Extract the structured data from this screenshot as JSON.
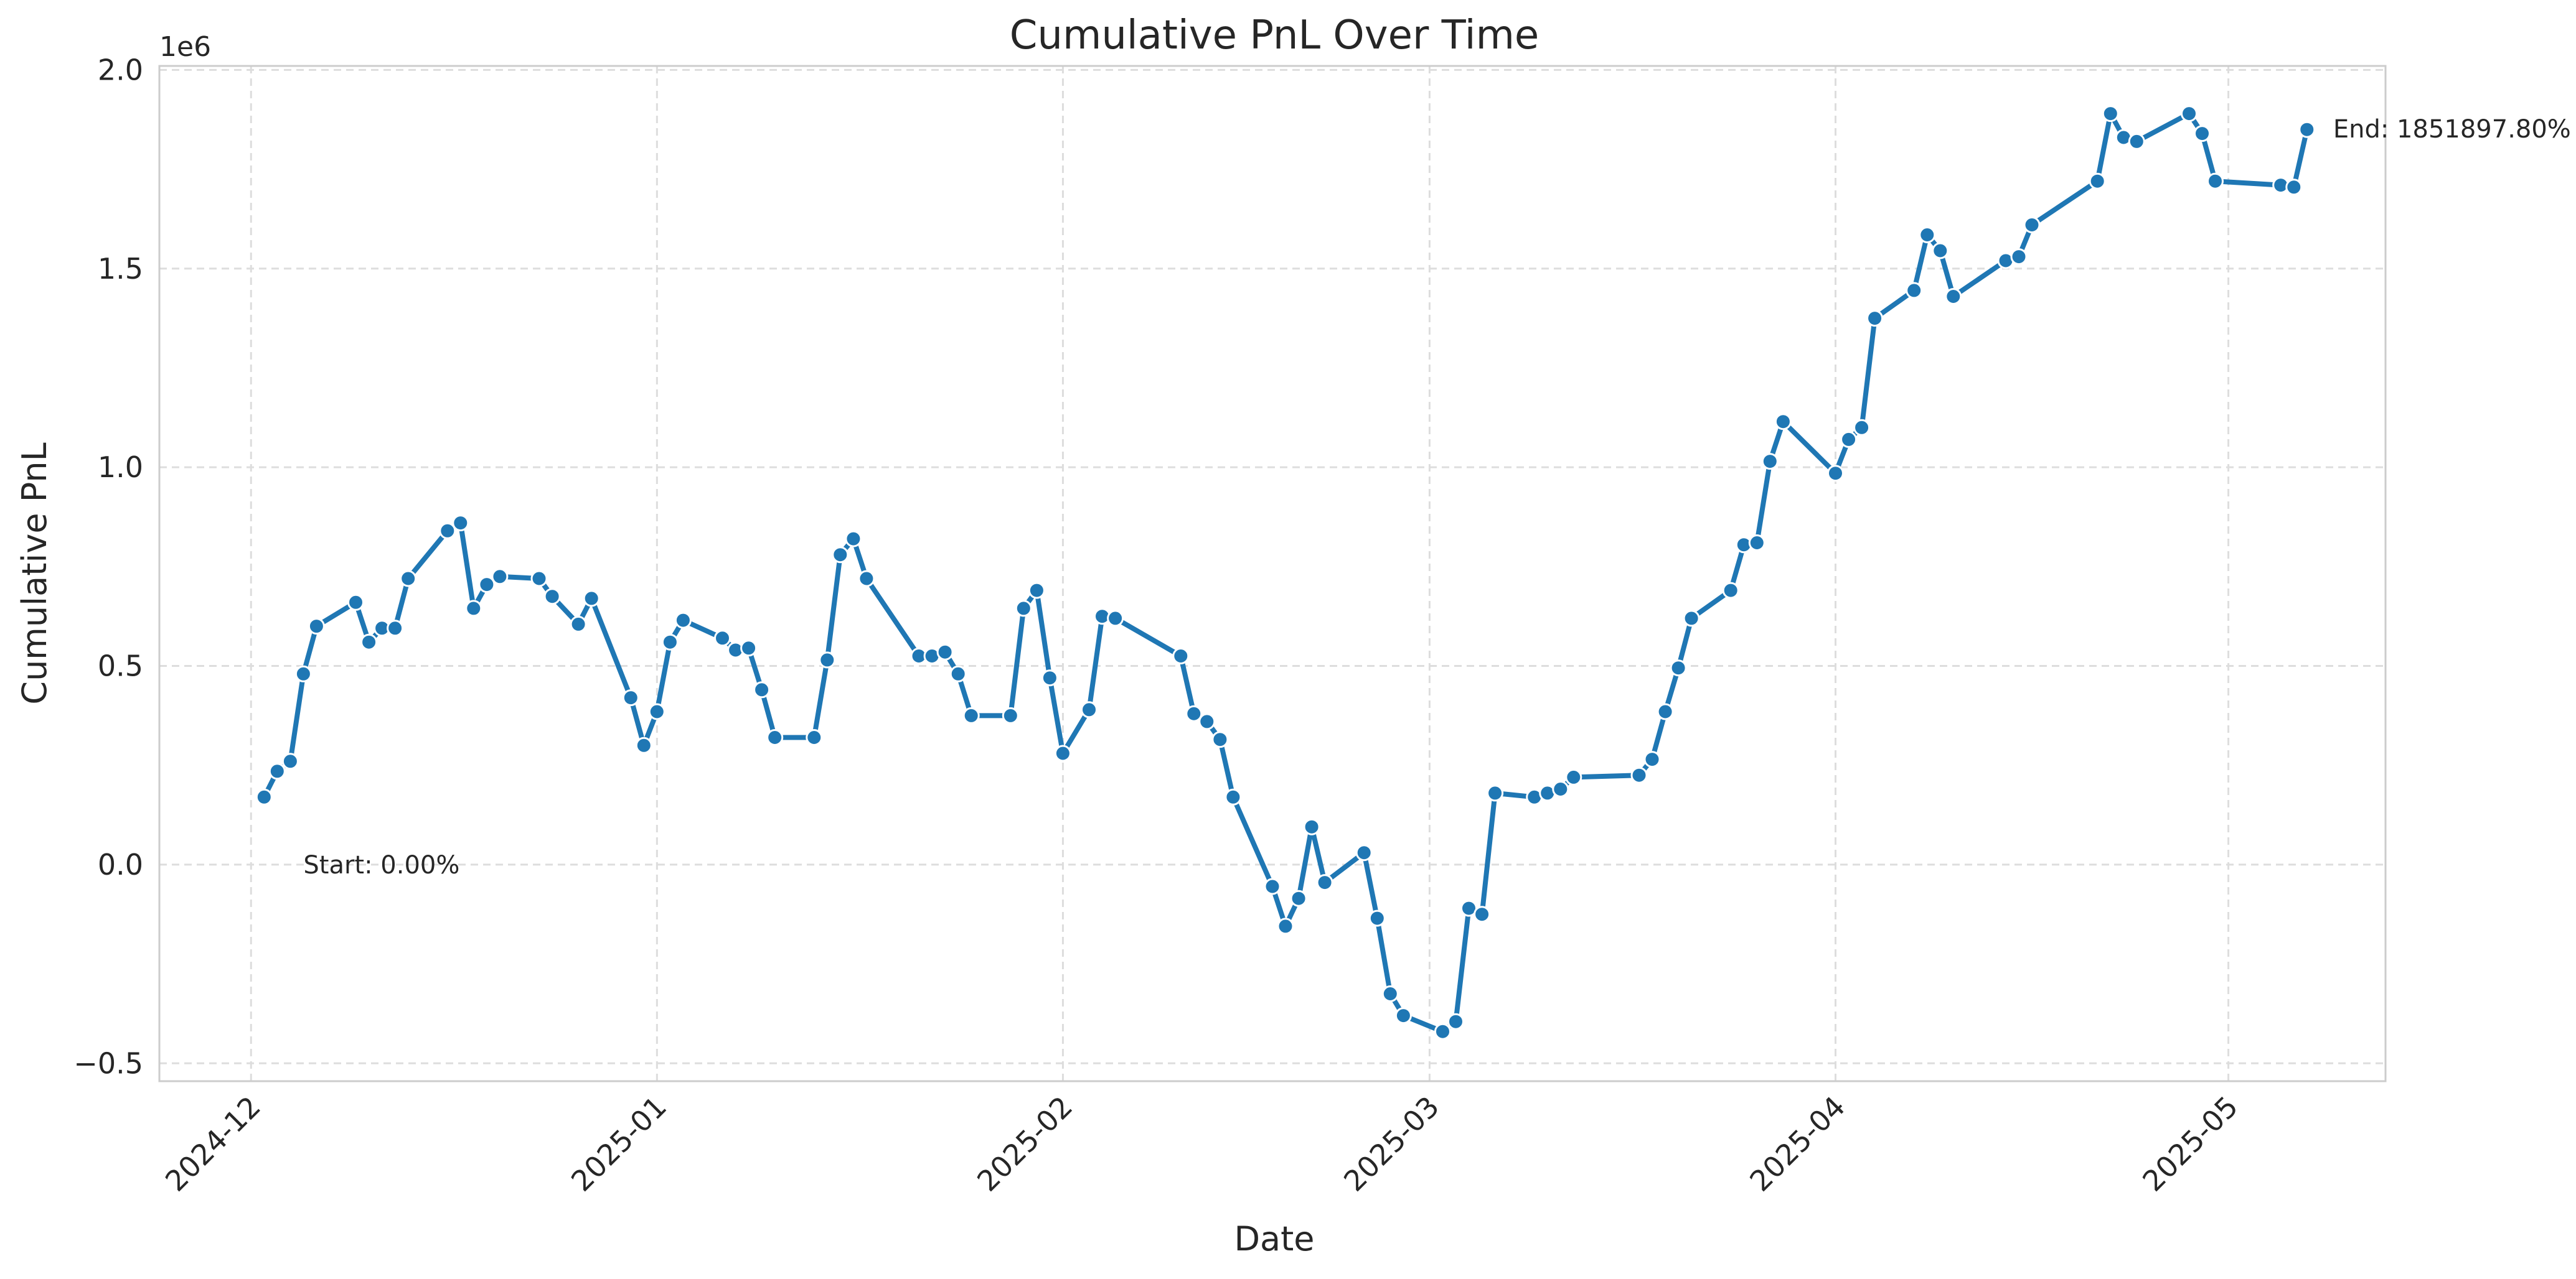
{
  "chart_data": {
    "type": "line",
    "title": "Cumulative PnL Over Time",
    "xlabel": "Date",
    "ylabel": "Cumulative PnL",
    "y_offset_text": "1e6",
    "ylim": [
      -0.545,
      2.01
    ],
    "y_ticks": [
      -0.5,
      0.0,
      0.5,
      1.0,
      1.5,
      2.0
    ],
    "y_tick_labels": [
      "−0.5",
      "0.0",
      "0.5",
      "1.0",
      "1.5",
      "2.0"
    ],
    "xlim": [
      "2024-11-24",
      "2025-05-13"
    ],
    "x_ticks": [
      "2024-12-01",
      "2025-01-01",
      "2025-02-01",
      "2025-03-01",
      "2025-04-01",
      "2025-05-01"
    ],
    "x_tick_labels": [
      "2024-12",
      "2025-01",
      "2025-02",
      "2025-03",
      "2025-04",
      "2025-05"
    ],
    "grid": true,
    "grid_style": "dashed",
    "line_color": "#1f77b4",
    "series": [
      {
        "x": [
          "2024-12-02",
          "2024-12-03",
          "2024-12-04",
          "2024-12-05",
          "2024-12-06",
          "2024-12-09",
          "2024-12-10",
          "2024-12-11",
          "2024-12-12",
          "2024-12-13",
          "2024-12-16",
          "2024-12-17",
          "2024-12-18",
          "2024-12-19",
          "2024-12-20",
          "2024-12-23",
          "2024-12-24",
          "2024-12-26",
          "2024-12-27",
          "2024-12-30",
          "2024-12-31",
          "2025-01-01",
          "2025-01-02",
          "2025-01-03",
          "2025-01-06",
          "2025-01-07",
          "2025-01-08",
          "2025-01-09",
          "2025-01-10",
          "2025-01-13",
          "2025-01-14",
          "2025-01-15",
          "2025-01-16",
          "2025-01-17",
          "2025-01-21",
          "2025-01-22",
          "2025-01-23",
          "2025-01-24",
          "2025-01-25",
          "2025-01-28",
          "2025-01-29",
          "2025-01-30",
          "2025-01-31",
          "2025-02-01",
          "2025-02-03",
          "2025-02-04",
          "2025-02-05",
          "2025-02-10",
          "2025-02-11",
          "2025-02-12",
          "2025-02-13",
          "2025-02-14",
          "2025-02-17",
          "2025-02-18",
          "2025-02-19",
          "2025-02-20",
          "2025-02-21",
          "2025-02-24",
          "2025-02-25",
          "2025-02-26",
          "2025-02-27",
          "2025-03-02",
          "2025-03-03",
          "2025-03-04",
          "2025-03-05",
          "2025-03-06",
          "2025-03-09",
          "2025-03-10",
          "2025-03-11",
          "2025-03-12",
          "2025-03-17",
          "2025-03-18",
          "2025-03-19",
          "2025-03-20",
          "2025-03-21",
          "2025-03-24",
          "2025-03-25",
          "2025-03-26",
          "2025-03-27",
          "2025-03-28",
          "2025-04-01",
          "2025-04-02",
          "2025-04-03",
          "2025-04-04",
          "2025-04-07",
          "2025-04-08",
          "2025-04-09",
          "2025-04-10",
          "2025-04-14",
          "2025-04-15",
          "2025-04-16",
          "2025-04-21",
          "2025-04-22",
          "2025-04-23",
          "2025-04-24",
          "2025-04-28",
          "2025-04-29",
          "2025-04-30",
          "2025-05-05",
          "2025-05-06",
          "2025-05-07"
        ],
        "values": [
          170000,
          235000,
          260000,
          480000,
          600000,
          660000,
          560000,
          595000,
          595000,
          720000,
          840000,
          860000,
          645000,
          705000,
          725000,
          720000,
          675000,
          605000,
          670000,
          420000,
          300000,
          385000,
          560000,
          615000,
          570000,
          540000,
          545000,
          440000,
          320000,
          320000,
          515000,
          780000,
          820000,
          720000,
          525000,
          525000,
          535000,
          480000,
          375000,
          375000,
          645000,
          690000,
          470000,
          280000,
          390000,
          625000,
          620000,
          525000,
          380000,
          360000,
          315000,
          170000,
          -55000,
          -155000,
          -85000,
          95000,
          -45000,
          30000,
          -135000,
          -325000,
          -380000,
          -420000,
          -395000,
          -110000,
          -125000,
          180000,
          170000,
          180000,
          190000,
          220000,
          225000,
          265000,
          385000,
          495000,
          620000,
          690000,
          805000,
          810000,
          1015000,
          1115000,
          985000,
          1070000,
          1100000,
          1375000,
          1445000,
          1585000,
          1545000,
          1430000,
          1520000,
          1530000,
          1610000,
          1720000,
          1890000,
          1830000,
          1820000,
          1890000,
          1840000,
          1720000,
          1710000,
          1705000,
          1850000
        ]
      }
    ],
    "annotations": [
      {
        "text": "Start: 0.00%",
        "x": "2024-12-05",
        "y": 0.0
      },
      {
        "text": "End: 1851897.80%",
        "x": "2025-05-09",
        "y": 1851897.8
      }
    ]
  }
}
